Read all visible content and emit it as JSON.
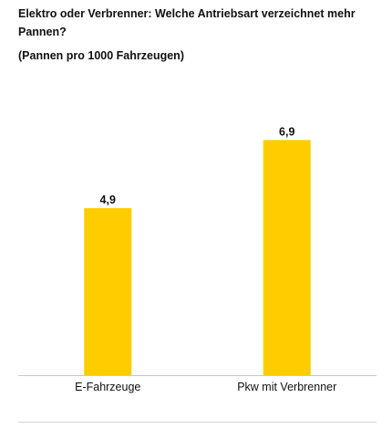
{
  "chart_data": {
    "type": "bar",
    "title": "Elektro oder Verbrenner: Welche Antriebsart verzeichnet mehr Pannen?",
    "subtitle": "(Pannen pro 1000 Fahrzeugen)",
    "categories": [
      "E-Fahrzeuge",
      "Pkw mit Verbrenner"
    ],
    "values": [
      4.9,
      6.9
    ],
    "value_labels": [
      "4,9",
      "6,9"
    ],
    "ylim": [
      0,
      7.5
    ],
    "grid": false,
    "legend": "none",
    "bar_color": "#ffcc00"
  }
}
